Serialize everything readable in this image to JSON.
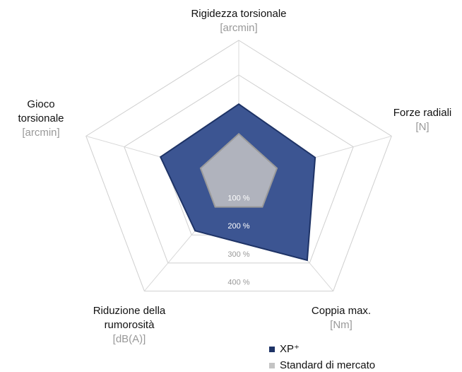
{
  "chart_data": {
    "type": "radar",
    "categories": [
      {
        "lines": [
          "Rigidezza torsionale"
        ],
        "unit": "[arcmin]"
      },
      {
        "lines": [
          "Forze radiali"
        ],
        "unit": "[N]"
      },
      {
        "lines": [
          "Coppia max."
        ],
        "unit": "[Nm]"
      },
      {
        "lines": [
          "Riduzione della",
          "rumorosità"
        ],
        "unit": "[dB(A)]"
      },
      {
        "lines": [
          "Gioco",
          "torsionale"
        ],
        "unit": "[arcmin]"
      }
    ],
    "rlim": [
      0,
      400
    ],
    "rticks": [
      {
        "value": 100,
        "label": "100 %"
      },
      {
        "value": 200,
        "label": "200 %"
      },
      {
        "value": 300,
        "label": "300 %"
      },
      {
        "value": 400,
        "label": "400 %"
      }
    ],
    "series": [
      {
        "name": "XP⁺",
        "color": "#3c5592",
        "values": [
          216,
          200,
          290,
          185,
          205
        ]
      },
      {
        "name": "Standard di mercato",
        "color": "#c4c4c4",
        "values": [
          130,
          100,
          100,
          100,
          100
        ]
      }
    ]
  }
}
